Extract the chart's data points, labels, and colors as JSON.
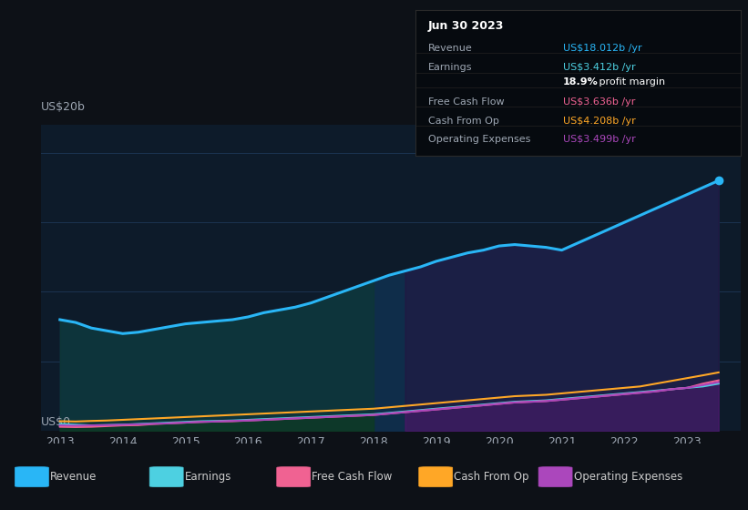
{
  "background_color": "#0d1117",
  "plot_bg_color": "#0d1b2a",
  "ylabel_text": "US$20b",
  "y0_text": "US$0",
  "years": [
    2013.0,
    2013.25,
    2013.5,
    2013.75,
    2014.0,
    2014.25,
    2014.5,
    2014.75,
    2015.0,
    2015.25,
    2015.5,
    2015.75,
    2016.0,
    2016.25,
    2016.5,
    2016.75,
    2017.0,
    2017.25,
    2017.5,
    2017.75,
    2018.0,
    2018.25,
    2018.5,
    2018.75,
    2019.0,
    2019.25,
    2019.5,
    2019.75,
    2020.0,
    2020.25,
    2020.5,
    2020.75,
    2021.0,
    2021.25,
    2021.5,
    2021.75,
    2022.0,
    2022.25,
    2022.5,
    2022.75,
    2023.0,
    2023.25,
    2023.5
  ],
  "revenue": [
    8.0,
    7.8,
    7.4,
    7.2,
    7.0,
    7.1,
    7.3,
    7.5,
    7.7,
    7.8,
    7.9,
    8.0,
    8.2,
    8.5,
    8.7,
    8.9,
    9.2,
    9.6,
    10.0,
    10.4,
    10.8,
    11.2,
    11.5,
    11.8,
    12.2,
    12.5,
    12.8,
    13.0,
    13.3,
    13.4,
    13.3,
    13.2,
    13.0,
    13.5,
    14.0,
    14.5,
    15.0,
    15.5,
    16.0,
    16.5,
    17.0,
    17.5,
    18.0
  ],
  "earnings": [
    0.5,
    0.45,
    0.4,
    0.42,
    0.45,
    0.5,
    0.55,
    0.6,
    0.65,
    0.7,
    0.72,
    0.75,
    0.8,
    0.85,
    0.9,
    0.95,
    1.0,
    1.05,
    1.1,
    1.15,
    1.2,
    1.3,
    1.4,
    1.5,
    1.6,
    1.7,
    1.8,
    1.9,
    2.0,
    2.1,
    2.15,
    2.2,
    2.3,
    2.4,
    2.5,
    2.6,
    2.7,
    2.8,
    2.9,
    3.0,
    3.1,
    3.2,
    3.4
  ],
  "free_cash_flow": [
    0.3,
    0.28,
    0.3,
    0.35,
    0.4,
    0.42,
    0.5,
    0.55,
    0.6,
    0.65,
    0.68,
    0.7,
    0.75,
    0.8,
    0.85,
    0.9,
    0.95,
    1.0,
    1.05,
    1.1,
    1.15,
    1.25,
    1.35,
    1.45,
    1.55,
    1.65,
    1.75,
    1.85,
    1.95,
    2.05,
    2.1,
    2.15,
    2.25,
    2.35,
    2.45,
    2.55,
    2.65,
    2.75,
    2.85,
    3.0,
    3.1,
    3.4,
    3.636
  ],
  "cash_from_op": [
    0.7,
    0.68,
    0.72,
    0.75,
    0.8,
    0.85,
    0.9,
    0.95,
    1.0,
    1.05,
    1.1,
    1.15,
    1.2,
    1.25,
    1.3,
    1.35,
    1.4,
    1.45,
    1.5,
    1.55,
    1.6,
    1.7,
    1.8,
    1.9,
    2.0,
    2.1,
    2.2,
    2.3,
    2.4,
    2.5,
    2.55,
    2.6,
    2.7,
    2.8,
    2.9,
    3.0,
    3.1,
    3.2,
    3.4,
    3.6,
    3.8,
    4.0,
    4.208
  ],
  "operating_expenses": [
    0.4,
    0.38,
    0.4,
    0.42,
    0.45,
    0.48,
    0.52,
    0.55,
    0.6,
    0.65,
    0.68,
    0.72,
    0.75,
    0.8,
    0.85,
    0.9,
    0.95,
    1.0,
    1.05,
    1.1,
    1.15,
    1.25,
    1.35,
    1.45,
    1.55,
    1.65,
    1.75,
    1.85,
    1.95,
    2.05,
    2.1,
    2.15,
    2.25,
    2.35,
    2.45,
    2.55,
    2.65,
    2.75,
    2.85,
    3.0,
    3.1,
    3.3,
    3.499
  ],
  "revenue_color": "#29b6f6",
  "earnings_color": "#4dd0e1",
  "free_cash_flow_color": "#f06292",
  "cash_from_op_color": "#ffa726",
  "operating_expenses_color": "#ab47bc",
  "grid_color": "#1e3a5a",
  "text_color": "#9ea7b3",
  "ylim": [
    0,
    22
  ],
  "xlim": [
    2012.7,
    2023.85
  ],
  "x_ticks": [
    2013,
    2014,
    2015,
    2016,
    2017,
    2018,
    2019,
    2020,
    2021,
    2022,
    2023
  ],
  "legend_items": [
    {
      "label": "Revenue",
      "color": "#29b6f6"
    },
    {
      "label": "Earnings",
      "color": "#4dd0e1"
    },
    {
      "label": "Free Cash Flow",
      "color": "#f06292"
    },
    {
      "label": "Cash From Op",
      "color": "#ffa726"
    },
    {
      "label": "Operating Expenses",
      "color": "#ab47bc"
    }
  ],
  "infobox": {
    "date": "Jun 30 2023",
    "rows": [
      {
        "label": "Revenue",
        "value": "US$18.012b /yr",
        "color": "#29b6f6"
      },
      {
        "label": "Earnings",
        "value": "US$3.412b /yr",
        "color": "#4dd0e1"
      },
      {
        "label": "",
        "value": "18.9% profit margin",
        "color": "#ffffff"
      },
      {
        "label": "Free Cash Flow",
        "value": "US$3.636b /yr",
        "color": "#f06292"
      },
      {
        "label": "Cash From Op",
        "value": "US$4.208b /yr",
        "color": "#ffa726"
      },
      {
        "label": "Operating Expenses",
        "value": "US$3.499b /yr",
        "color": "#ab47bc"
      }
    ]
  }
}
